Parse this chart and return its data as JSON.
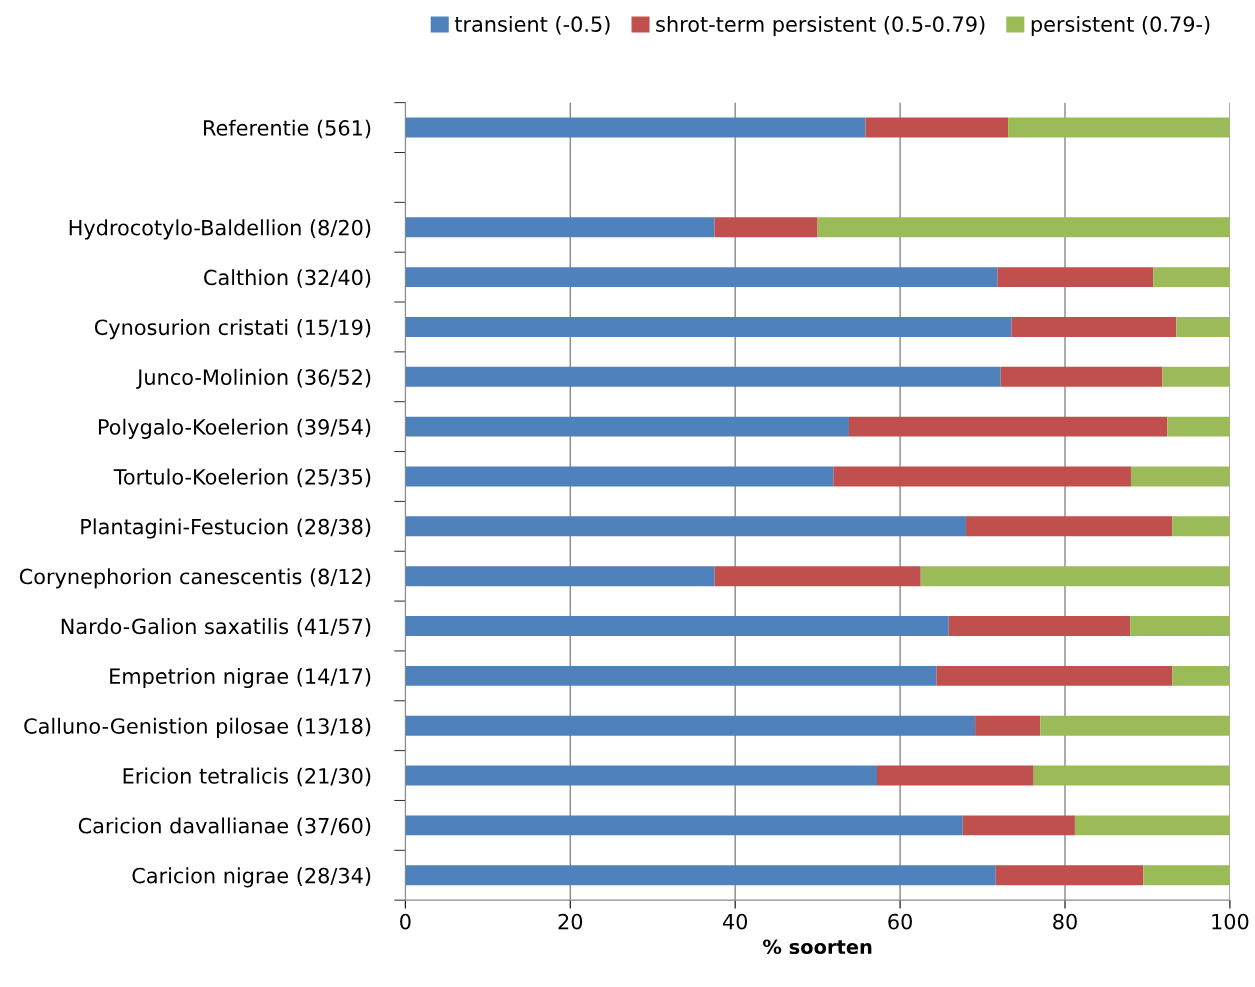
{
  "chart_data": {
    "type": "bar",
    "orientation": "horizontal",
    "stacked": true,
    "xlabel": "% soorten",
    "categories": [
      "Referentie (561)",
      null,
      "Hydrocotylo-Baldellion (8/20)",
      "Calthion (32/40)",
      "Cynosurion cristati (15/19)",
      "Junco-Molinion (36/52)",
      "Polygalo-Koelerion (39/54)",
      "Tortulo-Koelerion (25/35)",
      "Plantagini-Festucion (28/38)",
      "Corynephorion canescentis (8/12)",
      "Nardo-Galion saxatilis (41/57)",
      "Empetrion nigrae (14/17)",
      "Calluno-Genistion pilosae (13/18)",
      "Ericion tetralicis (21/30)",
      "Caricion davallianae (37/60)",
      "Caricion nigrae (28/34)"
    ],
    "series": [
      {
        "name": "transient (-0.5)",
        "color": "#4f81bd",
        "values": [
          55.8,
          null,
          37.5,
          71.8,
          73.5,
          72.2,
          53.8,
          51.9,
          68.0,
          37.5,
          65.9,
          64.4,
          69.1,
          57.2,
          67.6,
          71.6
        ]
      },
      {
        "name": "shrot-term persistent (0.5-0.79)",
        "color": "#c0504d",
        "values": [
          17.3,
          null,
          12.5,
          18.9,
          20.0,
          19.6,
          38.6,
          36.1,
          25.0,
          25.0,
          22.0,
          28.6,
          7.9,
          19.0,
          13.6,
          17.9
        ]
      },
      {
        "name": "persistent (0.79-)",
        "color": "#9bbb59",
        "values": [
          26.9,
          null,
          50.0,
          9.3,
          6.5,
          8.2,
          7.6,
          12.0,
          7.0,
          37.5,
          12.1,
          7.0,
          23.0,
          23.8,
          18.8,
          10.5
        ]
      }
    ],
    "xlim": [
      0,
      100
    ],
    "xticks": [
      0,
      20,
      40,
      60,
      80,
      100
    ],
    "grid": "x",
    "legend": "top right"
  }
}
